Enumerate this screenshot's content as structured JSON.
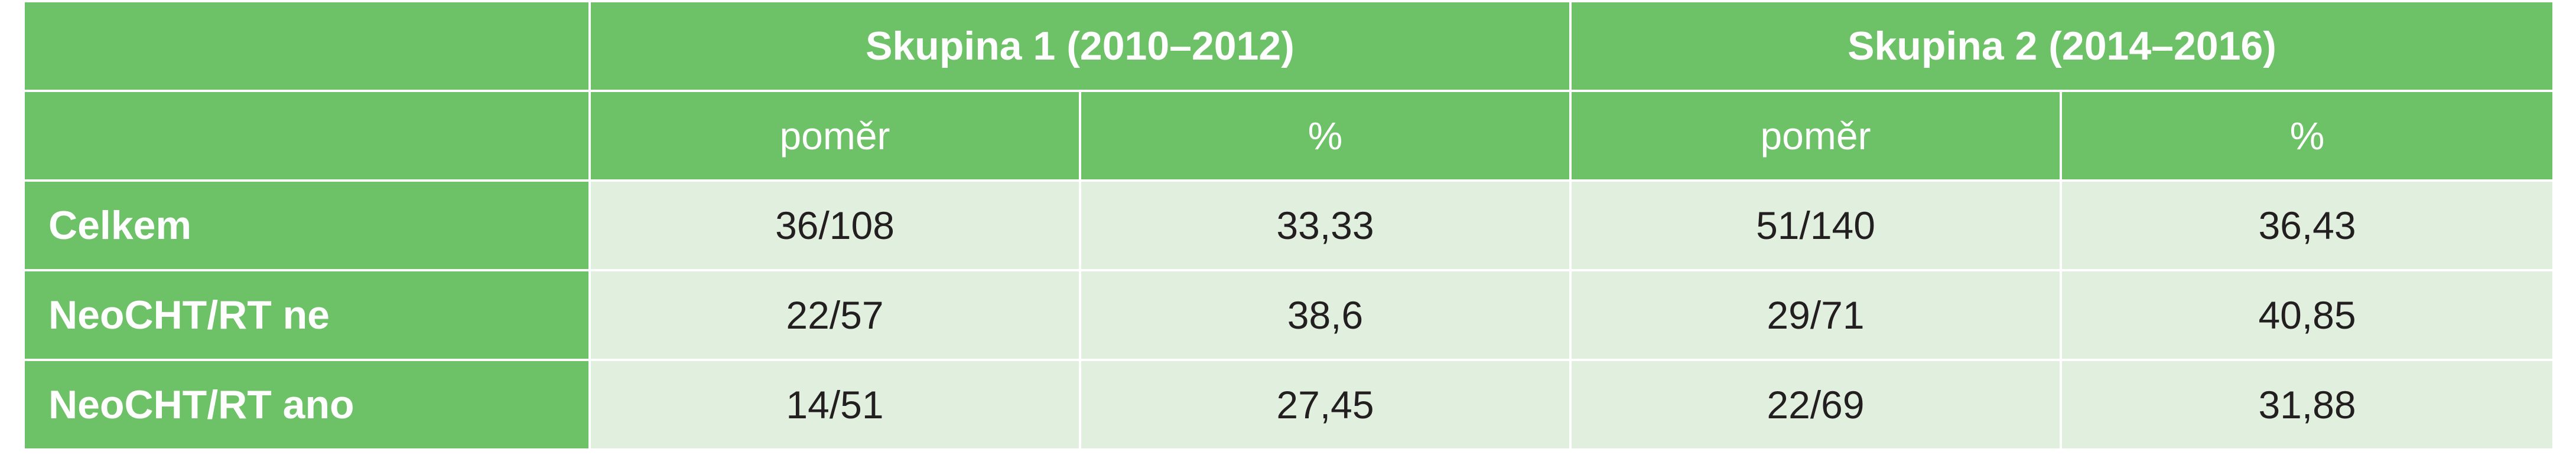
{
  "groups": [
    {
      "label": "Skupina 1 (2010–2012)"
    },
    {
      "label": "Skupina 2 (2014–2016)"
    }
  ],
  "subheaders": [
    "poměr",
    "%",
    "poměr",
    "%"
  ],
  "rows": [
    {
      "label": "Celkem",
      "cells": [
        "36/108",
        "33,33",
        "51/140",
        "36,43"
      ]
    },
    {
      "label": "NeoCHT/RT ne",
      "cells": [
        "22/57",
        "38,6",
        "29/71",
        "40,85"
      ]
    },
    {
      "label": "NeoCHT/RT ano",
      "cells": [
        "14/51",
        "27,45",
        "22/69",
        "31,88"
      ]
    }
  ],
  "colors": {
    "header_green": "#6dc167",
    "cell_light_green": "#e1f0de",
    "text_dark": "#231f20",
    "text_white": "#ffffff"
  }
}
